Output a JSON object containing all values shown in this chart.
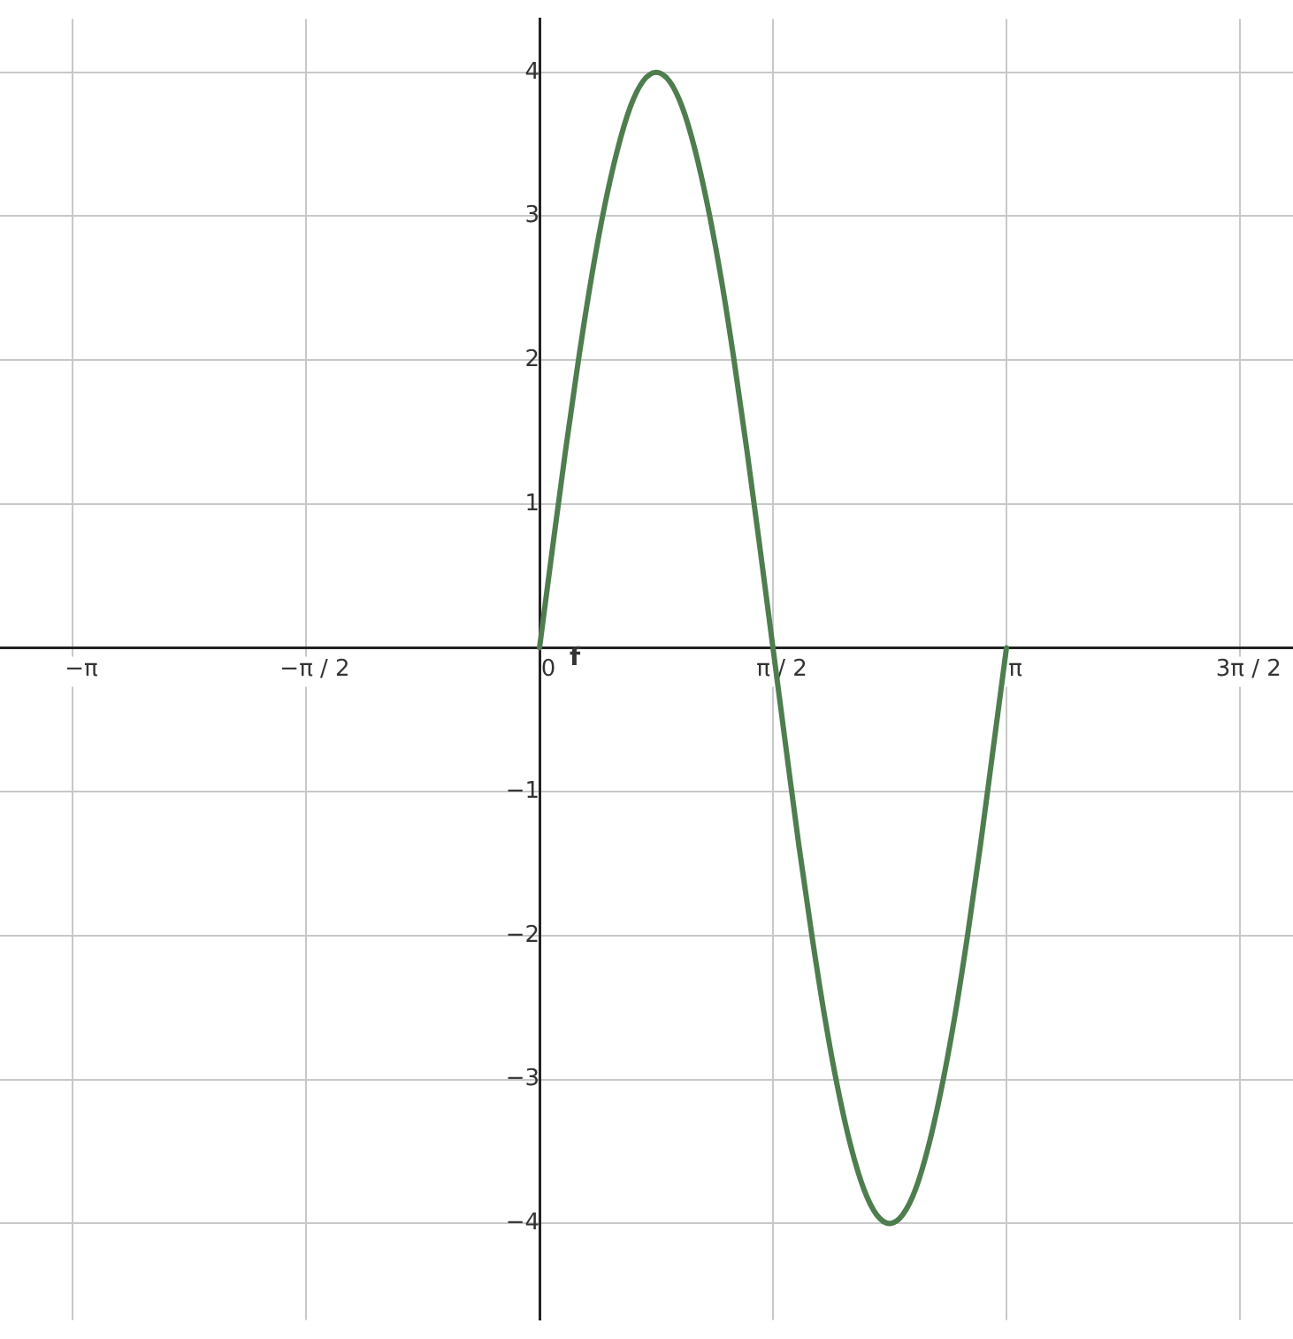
{
  "chart_data": {
    "type": "line",
    "x": [
      0,
      0.087,
      0.175,
      0.262,
      0.349,
      0.436,
      0.524,
      0.611,
      0.698,
      0.785,
      0.873,
      0.96,
      1.047,
      1.134,
      1.222,
      1.309,
      1.396,
      1.484,
      1.571,
      1.658,
      1.745,
      1.833,
      1.92,
      2.007,
      2.094,
      2.182,
      2.269,
      2.356,
      2.443,
      2.531,
      2.618,
      2.705,
      2.793,
      2.88,
      2.967,
      3.054,
      3.142
    ],
    "series": [
      {
        "name": "f",
        "color": "#4e7d4e",
        "values": [
          0,
          0.69,
          1.37,
          2,
          2.57,
          3.06,
          3.46,
          3.76,
          3.94,
          4,
          3.94,
          3.76,
          3.46,
          3.06,
          2.57,
          2,
          1.37,
          0.69,
          0,
          -0.69,
          -1.37,
          -2,
          -2.57,
          -3.06,
          -3.46,
          -3.76,
          -3.94,
          -4,
          -3.94,
          -3.76,
          -3.46,
          -3.06,
          -2.57,
          -2,
          -1.37,
          -0.69,
          0
        ]
      }
    ],
    "xlim": [
      -3.63,
      5.07
    ],
    "ylim": [
      -4.67,
      4.37
    ],
    "xticks": [
      {
        "value": -3.142,
        "label": "−π"
      },
      {
        "value": -1.571,
        "label": "−π / 2"
      },
      0,
      {
        "value": 1.571,
        "label": "π / 2"
      },
      {
        "value": 3.142,
        "label": "π"
      },
      {
        "value": 4.712,
        "label": "3π / 2"
      }
    ],
    "yticks": [
      -4,
      -3,
      -2,
      -1,
      {
        "value": 0,
        "label": null
      },
      1,
      2,
      3,
      4
    ],
    "grid": true,
    "legend": false,
    "marker": "none",
    "line_style": "solid"
  }
}
